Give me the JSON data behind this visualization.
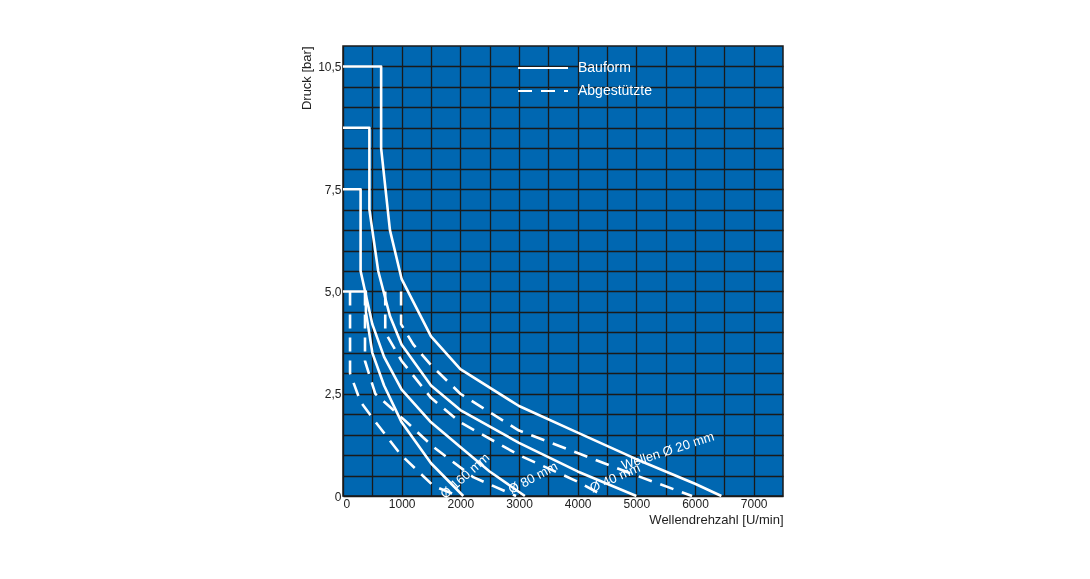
{
  "chart_data": {
    "type": "line",
    "xlabel": "Wellendrehzahl [U/min]",
    "ylabel": "Druck [bar]",
    "xlim": [
      0,
      7500
    ],
    "ylim": [
      0,
      11
    ],
    "xticks": [
      0,
      {
        "value": 500,
        "label": null
      },
      1000,
      {
        "value": 1500,
        "label": null
      },
      2000,
      {
        "value": 2500,
        "label": null
      },
      3000,
      {
        "value": 3500,
        "label": null
      },
      4000,
      {
        "value": 4500,
        "label": null
      },
      5000,
      {
        "value": 5500,
        "label": null
      },
      6000,
      {
        "value": 6500,
        "label": null
      },
      7000
    ],
    "yticks": [
      0,
      {
        "value": 0.5,
        "label": null
      },
      {
        "value": 1,
        "label": null
      },
      {
        "value": 1.5,
        "label": null
      },
      {
        "value": 2,
        "label": null
      },
      {
        "value": 2.5,
        "label": "2,5"
      },
      {
        "value": 3,
        "label": null
      },
      {
        "value": 3.5,
        "label": null
      },
      {
        "value": 4,
        "label": null
      },
      {
        "value": 4.5,
        "label": null
      },
      {
        "value": 5,
        "label": "5,0"
      },
      {
        "value": 5.5,
        "label": null
      },
      {
        "value": 6,
        "label": null
      },
      {
        "value": 6.5,
        "label": null
      },
      {
        "value": 7,
        "label": null
      },
      {
        "value": 7.5,
        "label": "7,5"
      },
      {
        "value": 8,
        "label": null
      },
      {
        "value": 8.5,
        "label": null
      },
      {
        "value": 9,
        "label": null
      },
      {
        "value": 9.5,
        "label": null
      },
      {
        "value": 10,
        "label": null
      },
      {
        "value": 10.5,
        "label": "10,5"
      }
    ],
    "grid": true,
    "legend": "top right",
    "series": [
      {
        "name": "Bauform",
        "color": "#ffffff",
        "line_style": "solid",
        "x": [
          0,
          650,
          650,
          800,
          1000,
          1500,
          2000,
          3000,
          4000,
          5000,
          6000,
          6450
        ],
        "values": [
          10.5,
          10.5,
          8.5,
          6.5,
          5.3,
          3.9,
          3.1,
          2.2,
          1.55,
          0.9,
          0.3,
          0
        ]
      },
      {
        "color": "#ffffff",
        "line_style": "solid",
        "x": [
          0,
          450,
          450,
          600,
          800,
          1000,
          1500,
          2000,
          3000,
          4000,
          5000
        ],
        "values": [
          9,
          9,
          7,
          5.5,
          4.4,
          3.7,
          2.7,
          2.1,
          1.3,
          0.6,
          0
        ]
      },
      {
        "color": "#ffffff",
        "line_style": "solid",
        "x": [
          0,
          300,
          300,
          500,
          700,
          1000,
          1500,
          2000,
          2500,
          3100
        ],
        "values": [
          7.5,
          7.5,
          5.5,
          4.2,
          3.4,
          2.6,
          1.8,
          1.2,
          0.6,
          0
        ]
      },
      {
        "color": "#ffffff",
        "line_style": "solid",
        "x": [
          0,
          390,
          390,
          500,
          700,
          1000,
          1500,
          2050
        ],
        "values": [
          5,
          5,
          4.5,
          3.5,
          2.7,
          1.8,
          0.8,
          0
        ]
      },
      {
        "name": "Abgestützte",
        "color": "#ffffff",
        "line_style": "dashed",
        "x": [
          990,
          990,
          1200,
          1500,
          2000,
          3000,
          4000,
          5000,
          5950
        ],
        "values": [
          5,
          4.2,
          3.7,
          3.2,
          2.5,
          1.6,
          1.05,
          0.5,
          0
        ]
      },
      {
        "color": "#ffffff",
        "line_style": "dashed",
        "x": [
          720,
          720,
          1000,
          1500,
          2000,
          3000,
          4000,
          4450
        ],
        "values": [
          5,
          4,
          3.3,
          2.4,
          1.8,
          1.0,
          0.35,
          0
        ]
      },
      {
        "color": "#ffffff",
        "line_style": "dashed",
        "x": [
          375,
          375,
          550,
          1060,
          1540,
          2220,
          2950
        ],
        "values": [
          5,
          3.3,
          2.5,
          1.84,
          1.2,
          0.46,
          0
        ]
      },
      {
        "color": "#ffffff",
        "line_style": "dashed",
        "x": [
          120,
          120,
          300,
          560,
          990,
          1540,
          1960
        ],
        "values": [
          5,
          3.0,
          2.3,
          1.8,
          1.0,
          0.25,
          0
        ]
      }
    ],
    "annotations": [
      "Wellen Ø 20 mm",
      "Ø 40 mm",
      "Ø 80 mm",
      "Ø 160 mm"
    ]
  }
}
